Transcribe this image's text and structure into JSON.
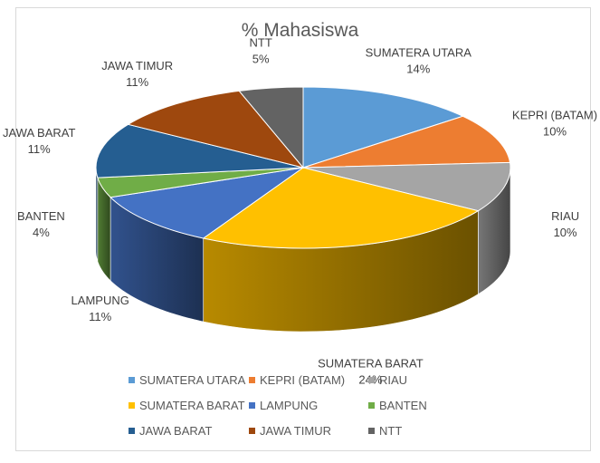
{
  "chart_data": {
    "type": "pie",
    "title": "% Mahasiswa",
    "categories": [
      "SUMATERA UTARA",
      "KEPRI (BATAM)",
      "RIAU",
      "SUMATERA BARAT",
      "LAMPUNG",
      "BANTEN",
      "JAWA BARAT",
      "JAWA TIMUR",
      "NTT"
    ],
    "values": [
      14,
      10,
      10,
      24,
      11,
      4,
      11,
      11,
      5
    ],
    "data_labels": [
      "14%",
      "10%",
      "10%",
      "24%",
      "11%",
      "4%",
      "11%",
      "11%",
      "5%"
    ],
    "colors": [
      "#5b9bd5",
      "#ed7d31",
      "#a5a5a5",
      "#ffc000",
      "#4472c4",
      "#70ad47",
      "#255e91",
      "#9e480e",
      "#636363"
    ],
    "legend_position": "bottom",
    "style": "3d"
  }
}
